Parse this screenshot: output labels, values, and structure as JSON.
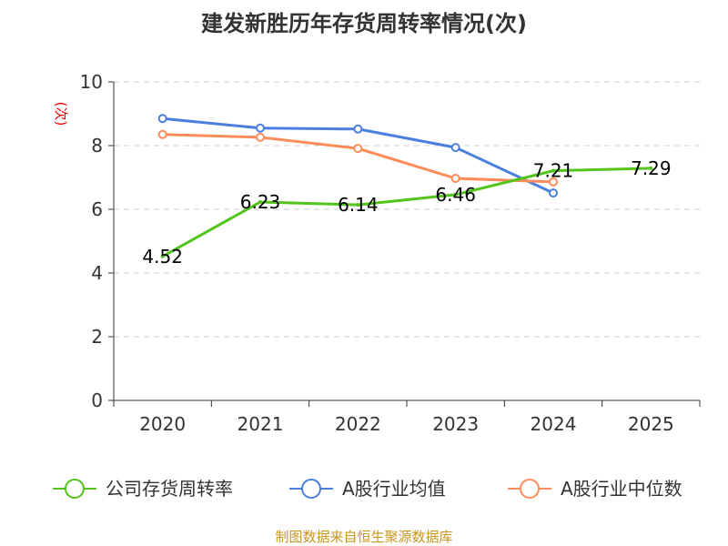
{
  "chart_data": {
    "type": "line",
    "title": "建发新胜历年存货周转率情况(次)",
    "ylabel": "(次)",
    "xlabel": "",
    "categories": [
      "2020",
      "2021",
      "2022",
      "2023",
      "2024",
      "2025"
    ],
    "ylim": [
      0,
      10
    ],
    "yticks": [
      0,
      2,
      4,
      6,
      8,
      10
    ],
    "grid": true,
    "legend_position": "bottom",
    "series": [
      {
        "name": "公司存货周转率",
        "color": "#52c41a",
        "values": [
          4.52,
          6.23,
          6.14,
          6.46,
          7.21,
          7.29
        ],
        "labels": [
          "4.52",
          "6.23",
          "6.14",
          "6.46",
          "7.21",
          "7.29"
        ]
      },
      {
        "name": "A股行业均值",
        "color": "#4a7fe0",
        "values": [
          8.85,
          8.55,
          8.52,
          7.94,
          6.51,
          null
        ]
      },
      {
        "name": "A股行业中位数",
        "color": "#ff8c5a",
        "values": [
          8.35,
          8.26,
          7.91,
          6.97,
          6.86,
          null
        ]
      }
    ],
    "source": "制图数据来自恒生聚源数据库"
  }
}
